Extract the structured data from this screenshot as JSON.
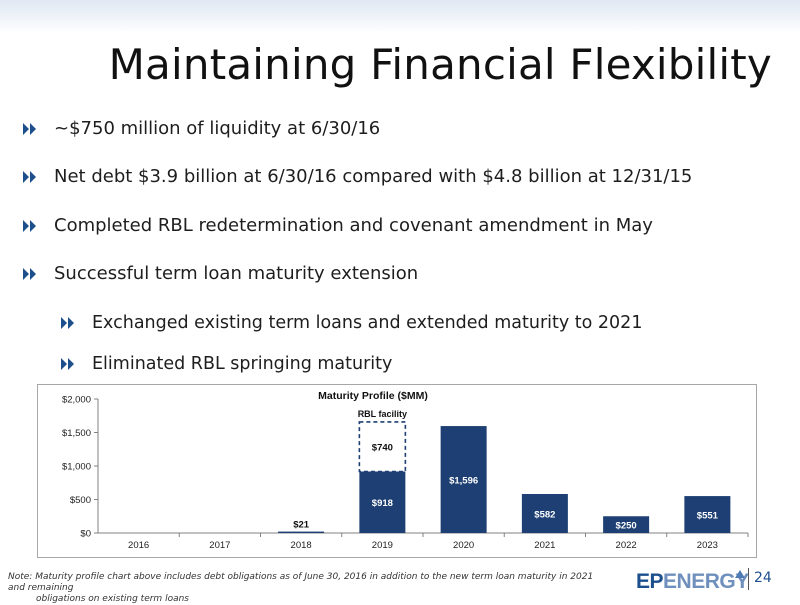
{
  "slide": {
    "title": "Maintaining Financial Flexibility",
    "page_number": "24"
  },
  "bullets": [
    {
      "text": "~$750 million of liquidity at 6/30/16",
      "level": 1
    },
    {
      "text": "Net debt $3.9 billion at 6/30/16 compared with $4.8 billion at 12/31/15",
      "level": 1
    },
    {
      "text": "Completed RBL redetermination and covenant amendment in May",
      "level": 1
    },
    {
      "text": "Successful term loan maturity extension",
      "level": 1
    },
    {
      "text": "Exchanged existing term loans and extended maturity to 2021",
      "level": 2
    },
    {
      "text": "Eliminated RBL springing maturity",
      "level": 2
    }
  ],
  "footnote": {
    "line1": "Note: Maturity profile chart above includes debt obligations as of June 30, 2016 in addition to the new term loan maturity in 2021 and remaining",
    "line2": "obligations on existing term loans"
  },
  "logo": {
    "ep": "EP",
    "energy": "ENERGY"
  },
  "colors": {
    "bar": "#1d3f73",
    "bullet_icon": "#1d4f8d",
    "accent": "#1d4f8d"
  },
  "chart_data": {
    "type": "bar",
    "title": "Maturity Profile ($MM)",
    "categories": [
      "2016",
      "2017",
      "2018",
      "2019",
      "2020",
      "2021",
      "2022",
      "2023"
    ],
    "series": [
      {
        "values": [
          0,
          0,
          21,
          918,
          1596,
          582,
          250,
          551
        ],
        "labels": [
          "",
          "",
          "$21",
          "$918",
          "$1,596",
          "$582",
          "$250",
          "$551"
        ]
      },
      {
        "values": [
          0,
          0,
          0,
          740,
          0,
          0,
          0,
          0
        ],
        "labels": [
          "",
          "",
          "",
          "$740",
          "",
          "",
          "",
          ""
        ],
        "style": "dashed-outline"
      }
    ],
    "annotation": "RBL facility",
    "ylim": [
      0,
      2000
    ],
    "yticks": [
      0,
      500,
      1000,
      1500,
      2000
    ],
    "ytick_labels": [
      "$0",
      "$500",
      "$1,000",
      "$1,500",
      "$2,000"
    ],
    "grid": false,
    "legend": "none"
  }
}
